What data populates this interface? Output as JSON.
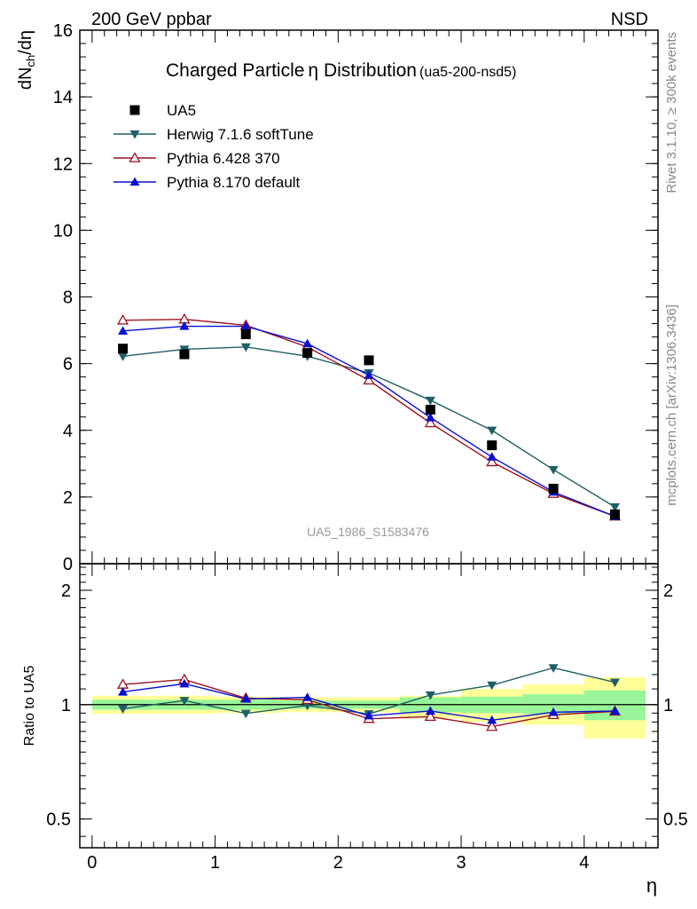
{
  "header": {
    "left_label": "200 GeV ppbar",
    "right_label": "NSD"
  },
  "side_labels": {
    "rivet": "Rivet 3.1.10, ≥ 300k events",
    "mcplots": "mcplots.cern.ch [arXiv:1306.3436]"
  },
  "chart_data": [
    {
      "type": "line",
      "panel": "main",
      "title_main": "Charged Particle",
      "title_symbol": "η",
      "title_rest": " Distribution",
      "title_suffix": "(ua5-200-nsd5)",
      "ylabel": "dN_ch/dη",
      "ylabel_parts": {
        "a": "dN",
        "sub": "ch",
        "b": "/dη"
      },
      "watermark": "UA5_1986_S1583476",
      "xlim": [
        -0.1,
        4.6
      ],
      "ylim": [
        0,
        16
      ],
      "y_ticks": [
        0,
        2,
        4,
        6,
        8,
        10,
        12,
        14,
        16
      ],
      "y_tick_labels": [
        "0",
        "2",
        "4",
        "6",
        "8",
        "10",
        "12",
        "14",
        "16"
      ],
      "x": [
        0.25,
        0.75,
        1.25,
        1.75,
        2.25,
        2.75,
        3.25,
        3.75,
        4.25
      ],
      "legend_position": "top-left",
      "series": [
        {
          "name": "UA5",
          "kind": "data",
          "marker": "square",
          "color": "#000000",
          "values": [
            6.45,
            6.28,
            6.88,
            6.32,
            6.1,
            4.62,
            3.55,
            2.25,
            1.48
          ]
        },
        {
          "name": "Herwig 7.1.6 softTune",
          "kind": "mc",
          "marker": "triangle-down",
          "color": "#1f5f66",
          "values": [
            6.22,
            6.43,
            6.5,
            6.22,
            5.72,
            4.9,
            4.0,
            2.82,
            1.7
          ]
        },
        {
          "name": "Pythia 6.428 370",
          "kind": "mc",
          "marker": "triangle-up-open",
          "color": "#a01020",
          "values": [
            7.3,
            7.33,
            7.15,
            6.5,
            5.5,
            4.22,
            3.05,
            2.1,
            1.42
          ]
        },
        {
          "name": "Pythia 8.170 default",
          "kind": "mc",
          "marker": "triangle-up",
          "color": "#0a10d0",
          "values": [
            6.98,
            7.12,
            7.12,
            6.6,
            5.65,
            4.38,
            3.2,
            2.15,
            1.42
          ]
        }
      ]
    },
    {
      "type": "line",
      "panel": "ratio",
      "ylabel": "Ratio to UA5",
      "xlabel": "η",
      "xlim": [
        -0.1,
        4.6
      ],
      "ylim": [
        0.42,
        2.35
      ],
      "y_scale": "log",
      "y_ticks": [
        0.5,
        1,
        2
      ],
      "y_tick_labels": [
        "0.5",
        "1",
        "2"
      ],
      "x_ticks": [
        0,
        1,
        2,
        3,
        4
      ],
      "x_tick_labels": [
        "0",
        "1",
        "2",
        "3",
        "4"
      ],
      "bands": {
        "bin_edges": [
          0,
          0.5,
          1.0,
          1.5,
          2.0,
          2.5,
          3.0,
          3.5,
          4.0,
          4.5
        ],
        "stat": {
          "color": "#99f599",
          "lo": [
            0.97,
            0.97,
            0.97,
            0.975,
            0.975,
            0.955,
            0.95,
            0.945,
            0.91
          ],
          "hi": [
            1.03,
            1.03,
            1.03,
            1.025,
            1.025,
            1.045,
            1.05,
            1.065,
            1.09
          ]
        },
        "total": {
          "color": "#ffff99",
          "lo": [
            0.945,
            0.945,
            0.95,
            0.955,
            0.955,
            0.92,
            0.9,
            0.885,
            0.815
          ],
          "hi": [
            1.055,
            1.055,
            1.05,
            1.045,
            1.045,
            1.055,
            1.1,
            1.13,
            1.18
          ]
        }
      },
      "series": [
        {
          "name": "Herwig 7.1.6 softTune",
          "marker": "triangle-down",
          "color": "#1f5f66",
          "values": [
            0.975,
            1.025,
            0.948,
            0.995,
            0.945,
            1.06,
            1.125,
            1.25,
            1.145
          ]
        },
        {
          "name": "Pythia 6.428 370",
          "marker": "triangle-up-open",
          "color": "#a01020",
          "values": [
            1.13,
            1.165,
            1.04,
            1.03,
            0.918,
            0.93,
            0.875,
            0.94,
            0.96
          ]
        },
        {
          "name": "Pythia 8.170 default",
          "marker": "triangle-up",
          "color": "#0a10d0",
          "values": [
            1.08,
            1.135,
            1.035,
            1.045,
            0.935,
            0.962,
            0.91,
            0.955,
            0.962
          ]
        }
      ]
    }
  ]
}
